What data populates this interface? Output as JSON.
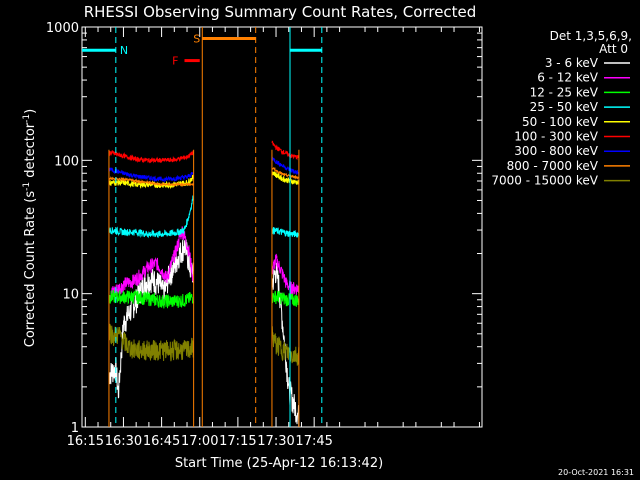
{
  "chart_data": {
    "type": "line",
    "title": "RHESSI Observing Summary Count Rates, Corrected",
    "xlabel": "Start Time (25-Apr-12 16:13:42)",
    "ylabel_parts": [
      "Corrected Count Rate (s",
      "-1",
      " detector",
      "-1",
      ")"
    ],
    "yscale": "log",
    "xlim_min": [
      13.7,
      171
    ],
    "ylim": [
      1,
      1000
    ],
    "xticks": [
      {
        "label": "16:15",
        "min": 15
      },
      {
        "label": "16:30",
        "min": 30
      },
      {
        "label": "16:45",
        "min": 45
      },
      {
        "label": "17:00",
        "min": 60
      },
      {
        "label": "17:15",
        "min": 75
      },
      {
        "label": "17:30",
        "min": 90
      },
      {
        "label": "17:45",
        "min": 105
      }
    ],
    "yticks": [
      {
        "label": "1",
        "v": 1
      },
      {
        "label": "10",
        "v": 10
      },
      {
        "label": "100",
        "v": 100
      },
      {
        "label": "1000",
        "v": 1000
      }
    ],
    "legend": {
      "placement": "top-right",
      "header": [
        "Det 1,3,5,6,9,",
        "Att 0"
      ],
      "entries": [
        {
          "label": "3 - 6 keV",
          "color": "#ffffff"
        },
        {
          "label": "6 - 12 keV",
          "color": "#ff00ff"
        },
        {
          "label": "12 - 25 keV",
          "color": "#00ff00"
        },
        {
          "label": "25 - 50 keV",
          "color": "#00ffff"
        },
        {
          "label": "50 - 100 keV",
          "color": "#ffff00"
        },
        {
          "label": "100 - 300 keV",
          "color": "#ff0000"
        },
        {
          "label": "300 - 800 keV",
          "color": "#0000ff"
        },
        {
          "label": "800 - 7000 keV",
          "color": "#ff8000"
        },
        {
          "label": "7000 - 15000 keV",
          "color": "#808000"
        }
      ]
    },
    "segments": [
      [
        24.3,
        57.6
      ],
      [
        88.4,
        99
      ]
    ],
    "series": [
      {
        "name": "3 - 6 keV",
        "color": "#ffffff",
        "points": [
          [
            24.3,
            2.5
          ],
          [
            27,
            2.8
          ],
          [
            28,
            1.8
          ],
          [
            30,
            6
          ],
          [
            32,
            7
          ],
          [
            35,
            9
          ],
          [
            38,
            12
          ],
          [
            41,
            13
          ],
          [
            44,
            12
          ],
          [
            46,
            10
          ],
          [
            48,
            14
          ],
          [
            50,
            16
          ],
          [
            52,
            20
          ],
          [
            54,
            23
          ],
          [
            55,
            20
          ],
          [
            56,
            16
          ],
          [
            57.6,
            14
          ],
          [
            88.4,
            12
          ],
          [
            90,
            15
          ],
          [
            91,
            12
          ],
          [
            92,
            8
          ],
          [
            93,
            5
          ],
          [
            95,
            2
          ],
          [
            97,
            1.5
          ],
          [
            99,
            1.2
          ]
        ]
      },
      {
        "name": "6 - 12 keV",
        "color": "#ff00ff",
        "points": [
          [
            24.3,
            10
          ],
          [
            28,
            11
          ],
          [
            31,
            12
          ],
          [
            34,
            12.5
          ],
          [
            37,
            14
          ],
          [
            40,
            16
          ],
          [
            43,
            17
          ],
          [
            45,
            15
          ],
          [
            47,
            13
          ],
          [
            49,
            17
          ],
          [
            51,
            22
          ],
          [
            53,
            30
          ],
          [
            54,
            27
          ],
          [
            56,
            20
          ],
          [
            57.6,
            12
          ],
          [
            88.4,
            15
          ],
          [
            90,
            18
          ],
          [
            92,
            15
          ],
          [
            94,
            12
          ],
          [
            96,
            11
          ],
          [
            99,
            11
          ]
        ]
      },
      {
        "name": "12 - 25 keV",
        "color": "#00ff00",
        "points": [
          [
            24.3,
            9.5
          ],
          [
            30,
            9.5
          ],
          [
            35,
            9.5
          ],
          [
            40,
            9.2
          ],
          [
            45,
            8.8
          ],
          [
            50,
            8.8
          ],
          [
            55,
            9
          ],
          [
            57.6,
            9.5
          ],
          [
            88.4,
            9.5
          ],
          [
            91,
            9.5
          ],
          [
            95,
            9
          ],
          [
            99,
            9
          ]
        ]
      },
      {
        "name": "25 - 50 keV",
        "color": "#00ffff",
        "points": [
          [
            24.3,
            30
          ],
          [
            30,
            29
          ],
          [
            35,
            29
          ],
          [
            40,
            28
          ],
          [
            45,
            28
          ],
          [
            50,
            28.5
          ],
          [
            54,
            30
          ],
          [
            56,
            40
          ],
          [
            57.6,
            55
          ],
          [
            88.4,
            30
          ],
          [
            92,
            29
          ],
          [
            96,
            28
          ],
          [
            99,
            28
          ]
        ]
      },
      {
        "name": "50 - 100 keV",
        "color": "#ffff00",
        "points": [
          [
            24.3,
            68
          ],
          [
            30,
            68
          ],
          [
            35,
            66
          ],
          [
            40,
            66
          ],
          [
            45,
            65
          ],
          [
            50,
            66
          ],
          [
            55,
            68
          ],
          [
            57.6,
            75
          ],
          [
            88.4,
            82
          ],
          [
            90,
            78
          ],
          [
            93,
            72
          ],
          [
            96,
            70
          ],
          [
            99,
            68
          ]
        ]
      },
      {
        "name": "100 - 300 keV",
        "color": "#ff0000",
        "points": [
          [
            24.3,
            115
          ],
          [
            30,
            108
          ],
          [
            35,
            102
          ],
          [
            40,
            100
          ],
          [
            45,
            100
          ],
          [
            50,
            101
          ],
          [
            55,
            106
          ],
          [
            57.6,
            115
          ],
          [
            88.4,
            135
          ],
          [
            90,
            125
          ],
          [
            93,
            115
          ],
          [
            96,
            108
          ],
          [
            99,
            105
          ]
        ]
      },
      {
        "name": "300 - 800 keV",
        "color": "#0000ff",
        "points": [
          [
            24.3,
            86
          ],
          [
            30,
            80
          ],
          [
            35,
            76
          ],
          [
            40,
            74
          ],
          [
            45,
            72
          ],
          [
            50,
            73
          ],
          [
            55,
            75
          ],
          [
            57.6,
            80
          ],
          [
            88.4,
            105
          ],
          [
            90,
            98
          ],
          [
            93,
            90
          ],
          [
            96,
            84
          ],
          [
            99,
            80
          ]
        ]
      },
      {
        "name": "800 - 7000 keV",
        "color": "#ff8000",
        "points": [
          [
            24.3,
            73
          ],
          [
            30,
            72
          ],
          [
            35,
            70
          ],
          [
            40,
            68
          ],
          [
            45,
            66
          ],
          [
            50,
            66
          ],
          [
            55,
            66
          ],
          [
            57.6,
            66
          ],
          [
            88.4,
            88
          ],
          [
            90,
            84
          ],
          [
            93,
            78
          ],
          [
            96,
            76
          ],
          [
            99,
            74
          ]
        ]
      },
      {
        "name": "7000 - 15000 keV",
        "color": "#808000",
        "points": [
          [
            24.3,
            5.5
          ],
          [
            26,
            4.8
          ],
          [
            28,
            5
          ],
          [
            30,
            4.5
          ],
          [
            32,
            4
          ],
          [
            35,
            3.8
          ],
          [
            40,
            3.8
          ],
          [
            45,
            3.8
          ],
          [
            50,
            3.8
          ],
          [
            55,
            3.8
          ],
          [
            57.6,
            4
          ],
          [
            88.4,
            5
          ],
          [
            90,
            4.2
          ],
          [
            93,
            3.8
          ],
          [
            96,
            3.5
          ],
          [
            99,
            3.5
          ]
        ]
      }
    ],
    "flag_regions": [
      {
        "label": "N",
        "color": "#00ffff",
        "level": 670,
        "ranges": [
          [
            13.7,
            27
          ],
          [
            95.5,
            108
          ]
        ],
        "dashed_at": [
          27,
          108
        ],
        "solid_at": [
          95.5
        ]
      },
      {
        "label": "S",
        "color": "#ff8000",
        "level": 820,
        "ranges": [
          [
            61,
            82
          ]
        ],
        "solid_at": [
          61
        ],
        "dashed_at": [
          82
        ]
      },
      {
        "label": "F",
        "color": "#ff0000",
        "level": 560,
        "ranges": [
          [
            54,
            60
          ]
        ]
      }
    ]
  },
  "footer": {
    "date": "20-Oct-2021 16:31"
  }
}
